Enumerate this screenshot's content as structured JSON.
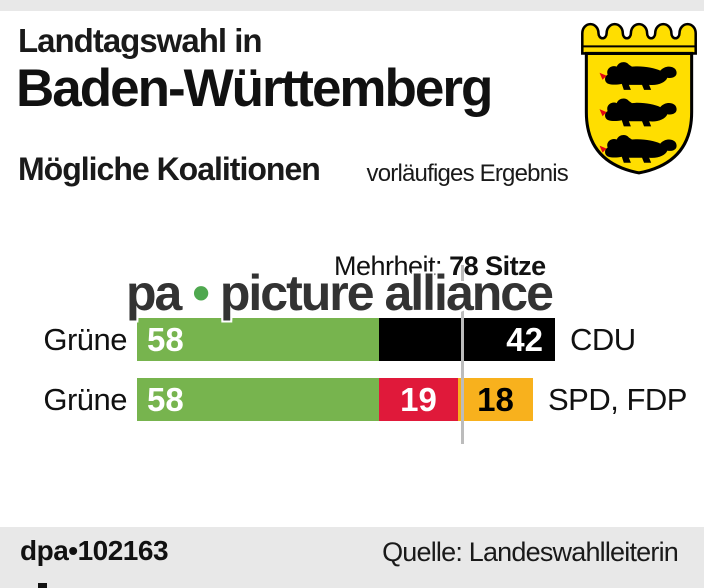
{
  "header": {
    "kicker": "Landtagswahl in",
    "title": "Baden-Württemberg",
    "subtitle": "Mögliche Koalitionen",
    "status_note": "vorläufiges Ergebnis"
  },
  "coat_of_arms": {
    "region": "Baden-Württemberg",
    "shield_color": "#FFDE00",
    "lion_color": "#000000",
    "tongue_color": "#E30613",
    "outline_color": "#000000"
  },
  "watermark": {
    "text_left": "pa",
    "separator": "•",
    "text_right": "picture alliance",
    "text_color": "#333333",
    "dot_color": "#4FA84F"
  },
  "chart_data": {
    "type": "bar",
    "orientation": "horizontal",
    "unit": "Sitze",
    "axis_max_seats": 100,
    "grid": false,
    "majority": {
      "label_prefix": "Mehrheit:",
      "label_value": "78 Sitze",
      "seats": 78,
      "line_color": "#BCBCBC"
    },
    "rows": [
      {
        "left_label": "Grüne",
        "right_label": "CDU",
        "total_seats": 100,
        "segments": [
          {
            "party": "Grüne",
            "seats": 58,
            "color": "#77B44E",
            "text_color": "#FFFFFF",
            "align": "left"
          },
          {
            "party": "CDU",
            "seats": 42,
            "color": "#000000",
            "text_color": "#FFFFFF",
            "align": "right"
          }
        ]
      },
      {
        "left_label": "Grüne",
        "right_label": "SPD, FDP",
        "total_seats": 95,
        "segments": [
          {
            "party": "Grüne",
            "seats": 58,
            "color": "#77B44E",
            "text_color": "#FFFFFF",
            "align": "left"
          },
          {
            "party": "SPD",
            "seats": 19,
            "color": "#E0193A",
            "text_color": "#FFFFFF",
            "align": "center"
          },
          {
            "party": "FDP",
            "seats": 18,
            "color": "#F8B11D",
            "text_color": "#000000",
            "align": "center"
          }
        ]
      }
    ]
  },
  "footer": {
    "credit": "dpa•102163",
    "source": "Quelle: Landeswahlleiterin"
  }
}
